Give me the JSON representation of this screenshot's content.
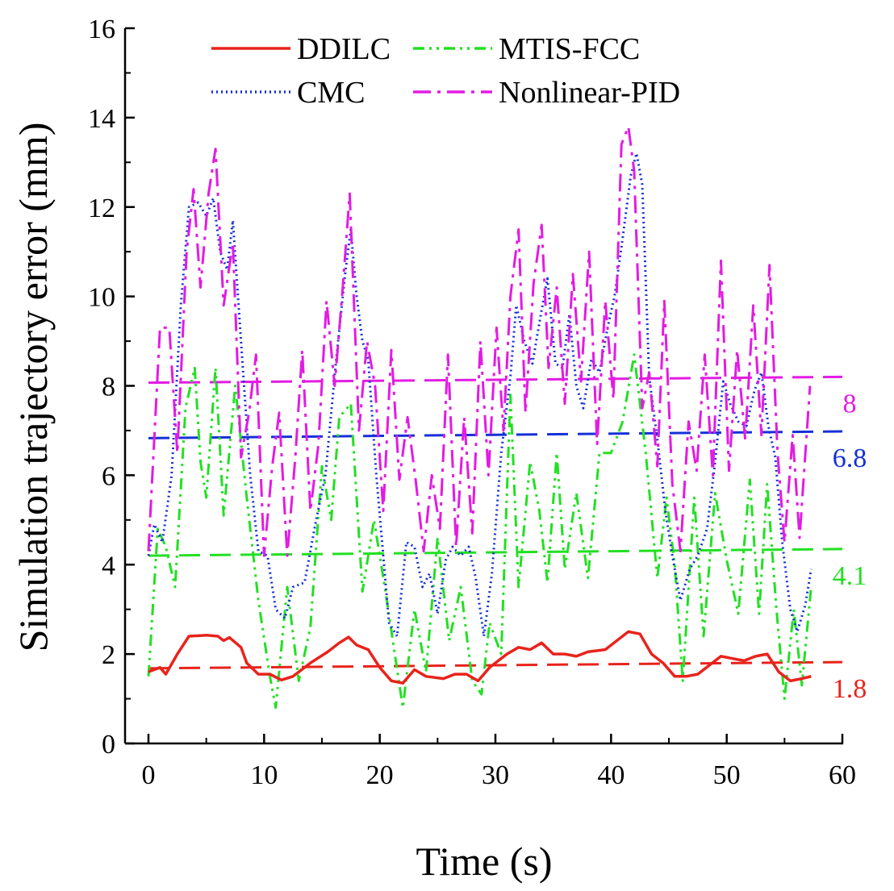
{
  "chart_data": {
    "type": "line",
    "xlabel": "Time (s)",
    "ylabel": "Simulation trajectory error (mm)",
    "xlim": [
      -2,
      60
    ],
    "ylim": [
      0,
      16
    ],
    "xticks": [
      0,
      10,
      20,
      30,
      40,
      50,
      60
    ],
    "yticks": [
      0,
      2,
      4,
      6,
      8,
      10,
      12,
      14,
      16
    ],
    "legend": {
      "placement": "top"
    },
    "series": [
      {
        "name": "DDILC",
        "color": "#e8231c",
        "dash": "solid",
        "points": [
          [
            0,
            1.6
          ],
          [
            1,
            1.7
          ],
          [
            1.5,
            1.55
          ],
          [
            2.5,
            2.0
          ],
          [
            3.5,
            2.4
          ],
          [
            5,
            2.42
          ],
          [
            6,
            2.4
          ],
          [
            6.5,
            2.3
          ],
          [
            7,
            2.37
          ],
          [
            8,
            2.15
          ],
          [
            8.5,
            1.8
          ],
          [
            9.5,
            1.55
          ],
          [
            10.5,
            1.55
          ],
          [
            11.5,
            1.42
          ],
          [
            12.5,
            1.5
          ],
          [
            14,
            1.8
          ],
          [
            15.5,
            2.05
          ],
          [
            16.5,
            2.25
          ],
          [
            17.3,
            2.38
          ],
          [
            18,
            2.2
          ],
          [
            19,
            2.1
          ],
          [
            20,
            1.7
          ],
          [
            21,
            1.4
          ],
          [
            22,
            1.35
          ],
          [
            23,
            1.65
          ],
          [
            24,
            1.5
          ],
          [
            25.5,
            1.45
          ],
          [
            26.5,
            1.55
          ],
          [
            27.5,
            1.55
          ],
          [
            28.5,
            1.4
          ],
          [
            29.5,
            1.7
          ],
          [
            31,
            2.0
          ],
          [
            32,
            2.15
          ],
          [
            33,
            2.1
          ],
          [
            34,
            2.25
          ],
          [
            35,
            2.0
          ],
          [
            36,
            2.0
          ],
          [
            37,
            1.95
          ],
          [
            38,
            2.05
          ],
          [
            39.5,
            2.1
          ],
          [
            40.5,
            2.3
          ],
          [
            41.5,
            2.5
          ],
          [
            42.5,
            2.45
          ],
          [
            43.5,
            2.0
          ],
          [
            44.5,
            1.8
          ],
          [
            45.5,
            1.5
          ],
          [
            46.5,
            1.5
          ],
          [
            47.5,
            1.55
          ],
          [
            48.5,
            1.75
          ],
          [
            49.5,
            1.95
          ],
          [
            50.5,
            1.9
          ],
          [
            51.5,
            1.85
          ],
          [
            52.5,
            1.95
          ],
          [
            53.5,
            2.0
          ],
          [
            54.5,
            1.6
          ],
          [
            55.5,
            1.4
          ],
          [
            56.5,
            1.45
          ],
          [
            57.3,
            1.5
          ]
        ]
      },
      {
        "name": "MTIS-FCC",
        "color": "#22e022",
        "dash": "dashdotdot",
        "points": [
          [
            0,
            1.5
          ],
          [
            0.8,
            4.8
          ],
          [
            1.5,
            4.4
          ],
          [
            2.3,
            3.5
          ],
          [
            3.2,
            7.5
          ],
          [
            4,
            8.4
          ],
          [
            4.5,
            6.3
          ],
          [
            5,
            5.5
          ],
          [
            5.8,
            8.4
          ],
          [
            6.5,
            5.1
          ],
          [
            7.5,
            8.0
          ],
          [
            8.5,
            5.5
          ],
          [
            9.5,
            3.2
          ],
          [
            10.5,
            1.5
          ],
          [
            11,
            0.8
          ],
          [
            12,
            3.5
          ],
          [
            13,
            1.4
          ],
          [
            14,
            2.6
          ],
          [
            15,
            6.2
          ],
          [
            15.8,
            5.0
          ],
          [
            16.5,
            7.3
          ],
          [
            17.5,
            7.6
          ],
          [
            18.5,
            3.4
          ],
          [
            19.5,
            5.0
          ],
          [
            20.5,
            3.4
          ],
          [
            21.3,
            2.0
          ],
          [
            22,
            0.8
          ],
          [
            23,
            3.0
          ],
          [
            24,
            1.6
          ],
          [
            25,
            4.6
          ],
          [
            26,
            2.3
          ],
          [
            27,
            3.5
          ],
          [
            28,
            1.4
          ],
          [
            28.8,
            1.1
          ],
          [
            29.5,
            2.7
          ],
          [
            30.5,
            2.0
          ],
          [
            31.3,
            7.8
          ],
          [
            32,
            3.5
          ],
          [
            33,
            6.3
          ],
          [
            33.8,
            5.2
          ],
          [
            34.5,
            3.6
          ],
          [
            35.3,
            6.5
          ],
          [
            36,
            3.9
          ],
          [
            37,
            5.6
          ],
          [
            38,
            3.7
          ],
          [
            39,
            6.5
          ],
          [
            40,
            6.5
          ],
          [
            41,
            7.2
          ],
          [
            42,
            8.7
          ],
          [
            43,
            6.5
          ],
          [
            44,
            3.7
          ],
          [
            44.8,
            5.5
          ],
          [
            45.5,
            4.0
          ],
          [
            46.2,
            1.4
          ],
          [
            47.2,
            5.5
          ],
          [
            48,
            2.4
          ],
          [
            49,
            5.6
          ],
          [
            50,
            4.1
          ],
          [
            51,
            2.9
          ],
          [
            52,
            5.9
          ],
          [
            52.8,
            2.9
          ],
          [
            53.5,
            5.8
          ],
          [
            54.3,
            3.0
          ],
          [
            55,
            1.0
          ],
          [
            55.8,
            3.0
          ],
          [
            56.5,
            1.3
          ],
          [
            57.3,
            3.5
          ]
        ]
      },
      {
        "name": "CMC",
        "color": "#1530d8",
        "dash": "dotted",
        "points": [
          [
            0,
            4.2
          ],
          [
            0.5,
            4.9
          ],
          [
            1.2,
            4.5
          ],
          [
            2,
            6.0
          ],
          [
            2.8,
            9.8
          ],
          [
            3.5,
            12.0
          ],
          [
            4.3,
            12.1
          ],
          [
            5,
            11.8
          ],
          [
            5.6,
            12.2
          ],
          [
            6.2,
            11.0
          ],
          [
            6.8,
            10.6
          ],
          [
            7.3,
            11.7
          ],
          [
            8,
            9.0
          ],
          [
            8.8,
            6.0
          ],
          [
            9.5,
            4.3
          ],
          [
            10.3,
            4.2
          ],
          [
            11,
            3.0
          ],
          [
            11.8,
            2.8
          ],
          [
            12.5,
            3.5
          ],
          [
            13.5,
            3.6
          ],
          [
            14.5,
            5.0
          ],
          [
            15.3,
            6.0
          ],
          [
            16.2,
            8.5
          ],
          [
            17,
            10.5
          ],
          [
            17.5,
            11.5
          ],
          [
            18,
            10.0
          ],
          [
            18.5,
            9.0
          ],
          [
            19,
            8.6
          ],
          [
            19.7,
            6.0
          ],
          [
            20.3,
            4.2
          ],
          [
            20.8,
            2.7
          ],
          [
            21.5,
            2.4
          ],
          [
            22.3,
            4.5
          ],
          [
            23,
            4.4
          ],
          [
            23.7,
            3.5
          ],
          [
            24.3,
            3.8
          ],
          [
            25,
            2.9
          ],
          [
            25.7,
            4.1
          ],
          [
            26.3,
            4.4
          ],
          [
            27,
            4.2
          ],
          [
            27.7,
            4.4
          ],
          [
            28.3,
            3.7
          ],
          [
            29,
            2.4
          ],
          [
            29.7,
            3.8
          ],
          [
            30.5,
            6.5
          ],
          [
            31.3,
            8.2
          ],
          [
            31.8,
            9.8
          ],
          [
            32.5,
            9.0
          ],
          [
            33.2,
            8.5
          ],
          [
            34,
            9.7
          ],
          [
            34.5,
            10.4
          ],
          [
            35.2,
            8.5
          ],
          [
            35.8,
            8.4
          ],
          [
            36.4,
            9.6
          ],
          [
            37,
            8.0
          ],
          [
            37.6,
            7.5
          ],
          [
            38.3,
            8.6
          ],
          [
            39,
            8.3
          ],
          [
            39.7,
            9.3
          ],
          [
            40.3,
            10.0
          ],
          [
            41,
            11.3
          ],
          [
            41.7,
            12.7
          ],
          [
            42.2,
            13.2
          ],
          [
            42.7,
            12.5
          ],
          [
            43.3,
            8.2
          ],
          [
            44,
            6.8
          ],
          [
            44.7,
            5.2
          ],
          [
            45.3,
            4.2
          ],
          [
            46,
            3.2
          ],
          [
            46.8,
            3.9
          ],
          [
            47.5,
            4.2
          ],
          [
            48.3,
            4.8
          ],
          [
            49,
            6.3
          ],
          [
            49.7,
            8.1
          ],
          [
            50.3,
            7.6
          ],
          [
            51,
            7.2
          ],
          [
            51.7,
            7.1
          ],
          [
            52.4,
            7.9
          ],
          [
            53,
            8.3
          ],
          [
            53.6,
            7.1
          ],
          [
            54.2,
            6.4
          ],
          [
            54.8,
            4.5
          ],
          [
            55.5,
            3.0
          ],
          [
            56.1,
            2.5
          ],
          [
            56.8,
            3.1
          ],
          [
            57.3,
            3.9
          ]
        ]
      },
      {
        "name": "Nonlinear-PID",
        "color": "#e31be3",
        "dash": "dashdot",
        "points": [
          [
            0,
            4.3
          ],
          [
            1,
            9.3
          ],
          [
            1.8,
            9.3
          ],
          [
            2.5,
            6.5
          ],
          [
            3.3,
            11.0
          ],
          [
            3.9,
            12.4
          ],
          [
            4.5,
            10.2
          ],
          [
            5.2,
            12.3
          ],
          [
            5.8,
            13.3
          ],
          [
            6.5,
            9.8
          ],
          [
            7.3,
            11.2
          ],
          [
            8,
            6.4
          ],
          [
            8.7,
            7.4
          ],
          [
            9.3,
            8.7
          ],
          [
            10,
            4.2
          ],
          [
            10.7,
            6.2
          ],
          [
            11.3,
            7.4
          ],
          [
            12,
            4.2
          ],
          [
            12.7,
            6.4
          ],
          [
            13.3,
            8.8
          ],
          [
            14,
            5.2
          ],
          [
            14.7,
            6.7
          ],
          [
            15.4,
            9.9
          ],
          [
            16.1,
            8.0
          ],
          [
            16.8,
            10.2
          ],
          [
            17.4,
            12.3
          ],
          [
            18.2,
            7.0
          ],
          [
            18.9,
            9.0
          ],
          [
            19.6,
            8.0
          ],
          [
            20.3,
            5.2
          ],
          [
            21,
            8.8
          ],
          [
            21.7,
            5.9
          ],
          [
            22.4,
            7.3
          ],
          [
            23.1,
            5.9
          ],
          [
            23.8,
            4.3
          ],
          [
            24.5,
            6.0
          ],
          [
            25.2,
            4.8
          ],
          [
            25.9,
            8.7
          ],
          [
            26.6,
            4.4
          ],
          [
            27.3,
            7.3
          ],
          [
            28,
            4.7
          ],
          [
            28.7,
            9.0
          ],
          [
            29.4,
            6.0
          ],
          [
            30.1,
            9.3
          ],
          [
            30.7,
            7.0
          ],
          [
            31.3,
            10.0
          ],
          [
            32,
            11.5
          ],
          [
            32.6,
            7.4
          ],
          [
            33.3,
            10.3
          ],
          [
            34,
            11.6
          ],
          [
            34.6,
            8.4
          ],
          [
            35.3,
            10.2
          ],
          [
            36,
            7.6
          ],
          [
            36.7,
            10.5
          ],
          [
            37.4,
            8.1
          ],
          [
            38.1,
            11.0
          ],
          [
            38.8,
            6.7
          ],
          [
            39.5,
            9.9
          ],
          [
            40.2,
            7.7
          ],
          [
            40.9,
            13.4
          ],
          [
            41.5,
            13.8
          ],
          [
            42,
            12.8
          ],
          [
            42.7,
            7.5
          ],
          [
            43.3,
            8.3
          ],
          [
            44,
            6.2
          ],
          [
            44.6,
            9.9
          ],
          [
            45.3,
            5.8
          ],
          [
            46,
            4.3
          ],
          [
            46.7,
            7.2
          ],
          [
            47.4,
            6.1
          ],
          [
            48.1,
            8.7
          ],
          [
            48.8,
            6.0
          ],
          [
            49.5,
            10.8
          ],
          [
            50.2,
            6.1
          ],
          [
            50.9,
            8.8
          ],
          [
            51.6,
            6.8
          ],
          [
            52.3,
            9.8
          ],
          [
            53,
            6.9
          ],
          [
            53.7,
            10.7
          ],
          [
            54.4,
            6.5
          ],
          [
            55,
            4.5
          ],
          [
            55.7,
            6.9
          ],
          [
            56.3,
            4.6
          ],
          [
            57.2,
            8.0
          ]
        ]
      }
    ],
    "mean_lines": [
      {
        "series": "DDILC",
        "label": "1.8",
        "color": "#e8231c",
        "y_start": 1.68,
        "y_end": 1.82
      },
      {
        "series": "MTIS-FCC",
        "label": "4.1",
        "color": "#22e022",
        "y_start": 4.2,
        "y_end": 4.35
      },
      {
        "series": "CMC",
        "label": "6.8",
        "color": "#1530d8",
        "y_start": 6.83,
        "y_end": 6.98
      },
      {
        "series": "Nonlinear-PID",
        "label": "8",
        "color": "#e31be3",
        "y_start": 8.07,
        "y_end": 8.2
      }
    ]
  }
}
